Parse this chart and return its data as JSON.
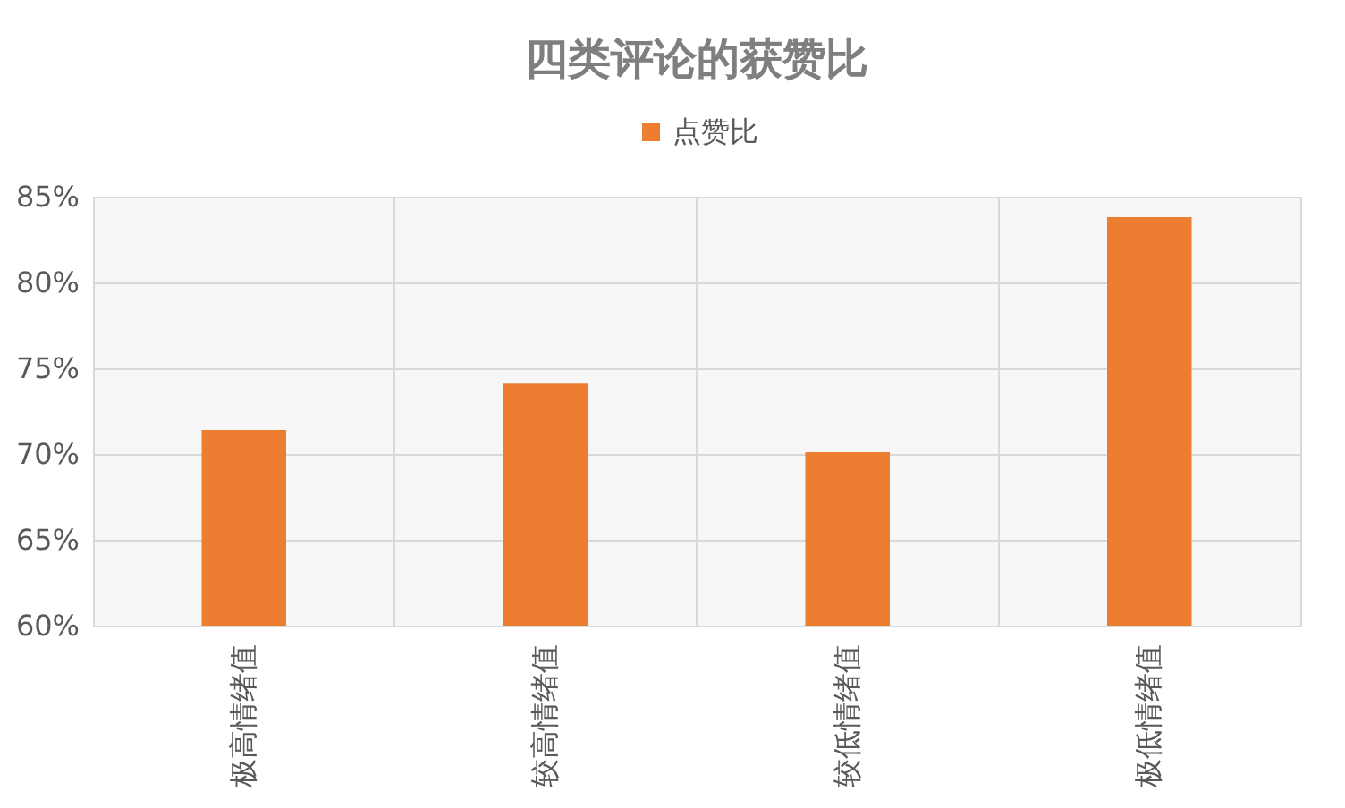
{
  "chart_data": {
    "type": "bar",
    "title": "四类评论的获赞比",
    "categories": [
      "极高情绪值",
      "较高情绪值",
      "较低情绪值",
      "极低情绪值"
    ],
    "series": [
      {
        "name": "点赞比",
        "color": "#ed7d31",
        "values": [
          71.4,
          74.1,
          70.1,
          83.8
        ]
      }
    ],
    "ylim": [
      60,
      85
    ],
    "yticks": [
      {
        "value": 60,
        "label": "60%"
      },
      {
        "value": 65,
        "label": "65%"
      },
      {
        "value": 70,
        "label": "70%"
      },
      {
        "value": 75,
        "label": "75%"
      },
      {
        "value": 80,
        "label": "80%"
      },
      {
        "value": 85,
        "label": "85%"
      }
    ],
    "grid": true,
    "legend": "top"
  }
}
